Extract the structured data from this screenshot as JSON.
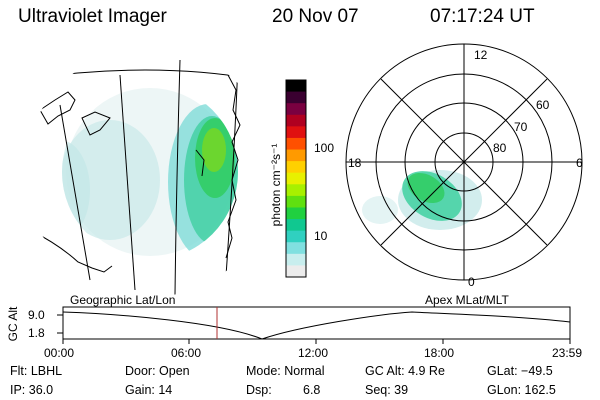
{
  "header": {
    "instrument": "Ultraviolet Imager",
    "date": "20 Nov 07",
    "time": "07:17:24 UT"
  },
  "colorbar": {
    "label": "photon cm⁻²s⁻¹",
    "ticks": [
      "100",
      "10"
    ],
    "colors": [
      "#000000",
      "#3a0030",
      "#7a0040",
      "#b00020",
      "#e01010",
      "#ff5000",
      "#ff9a00",
      "#ffd000",
      "#e8f000",
      "#a8f000",
      "#60e010",
      "#20d040",
      "#10c890",
      "#30d0c0",
      "#80e0e0",
      "#c8eeee",
      "#ececec"
    ]
  },
  "polar": {
    "mlt_labels": [
      "12",
      "18",
      "6",
      "0"
    ],
    "lat_labels": [
      "60",
      "70",
      "80"
    ]
  },
  "timeline": {
    "left_label": "Geographic Lat/Lon",
    "right_label": "Apex  MLat/MLT",
    "axis_label": "GC Alt",
    "ymax": "9.0",
    "ymin": "1.8",
    "ticks": [
      "00:00",
      "06:00",
      "12:00",
      "18:00",
      "23:59"
    ],
    "current_marker_hours": 7.29
  },
  "status": {
    "filter": "Flt: LBHL",
    "ip": "IP: 36.0",
    "door": "Door: Open",
    "gain": "Gain: 14",
    "mode": "Mode: Normal",
    "dsp_label": "Dsp:",
    "dsp_value": "6.8",
    "gc_alt": "GC Alt: 4.9 Re",
    "seq": "Seq: 39",
    "glat": "GLat: −49.5",
    "glon": "GLon: 162.5"
  }
}
